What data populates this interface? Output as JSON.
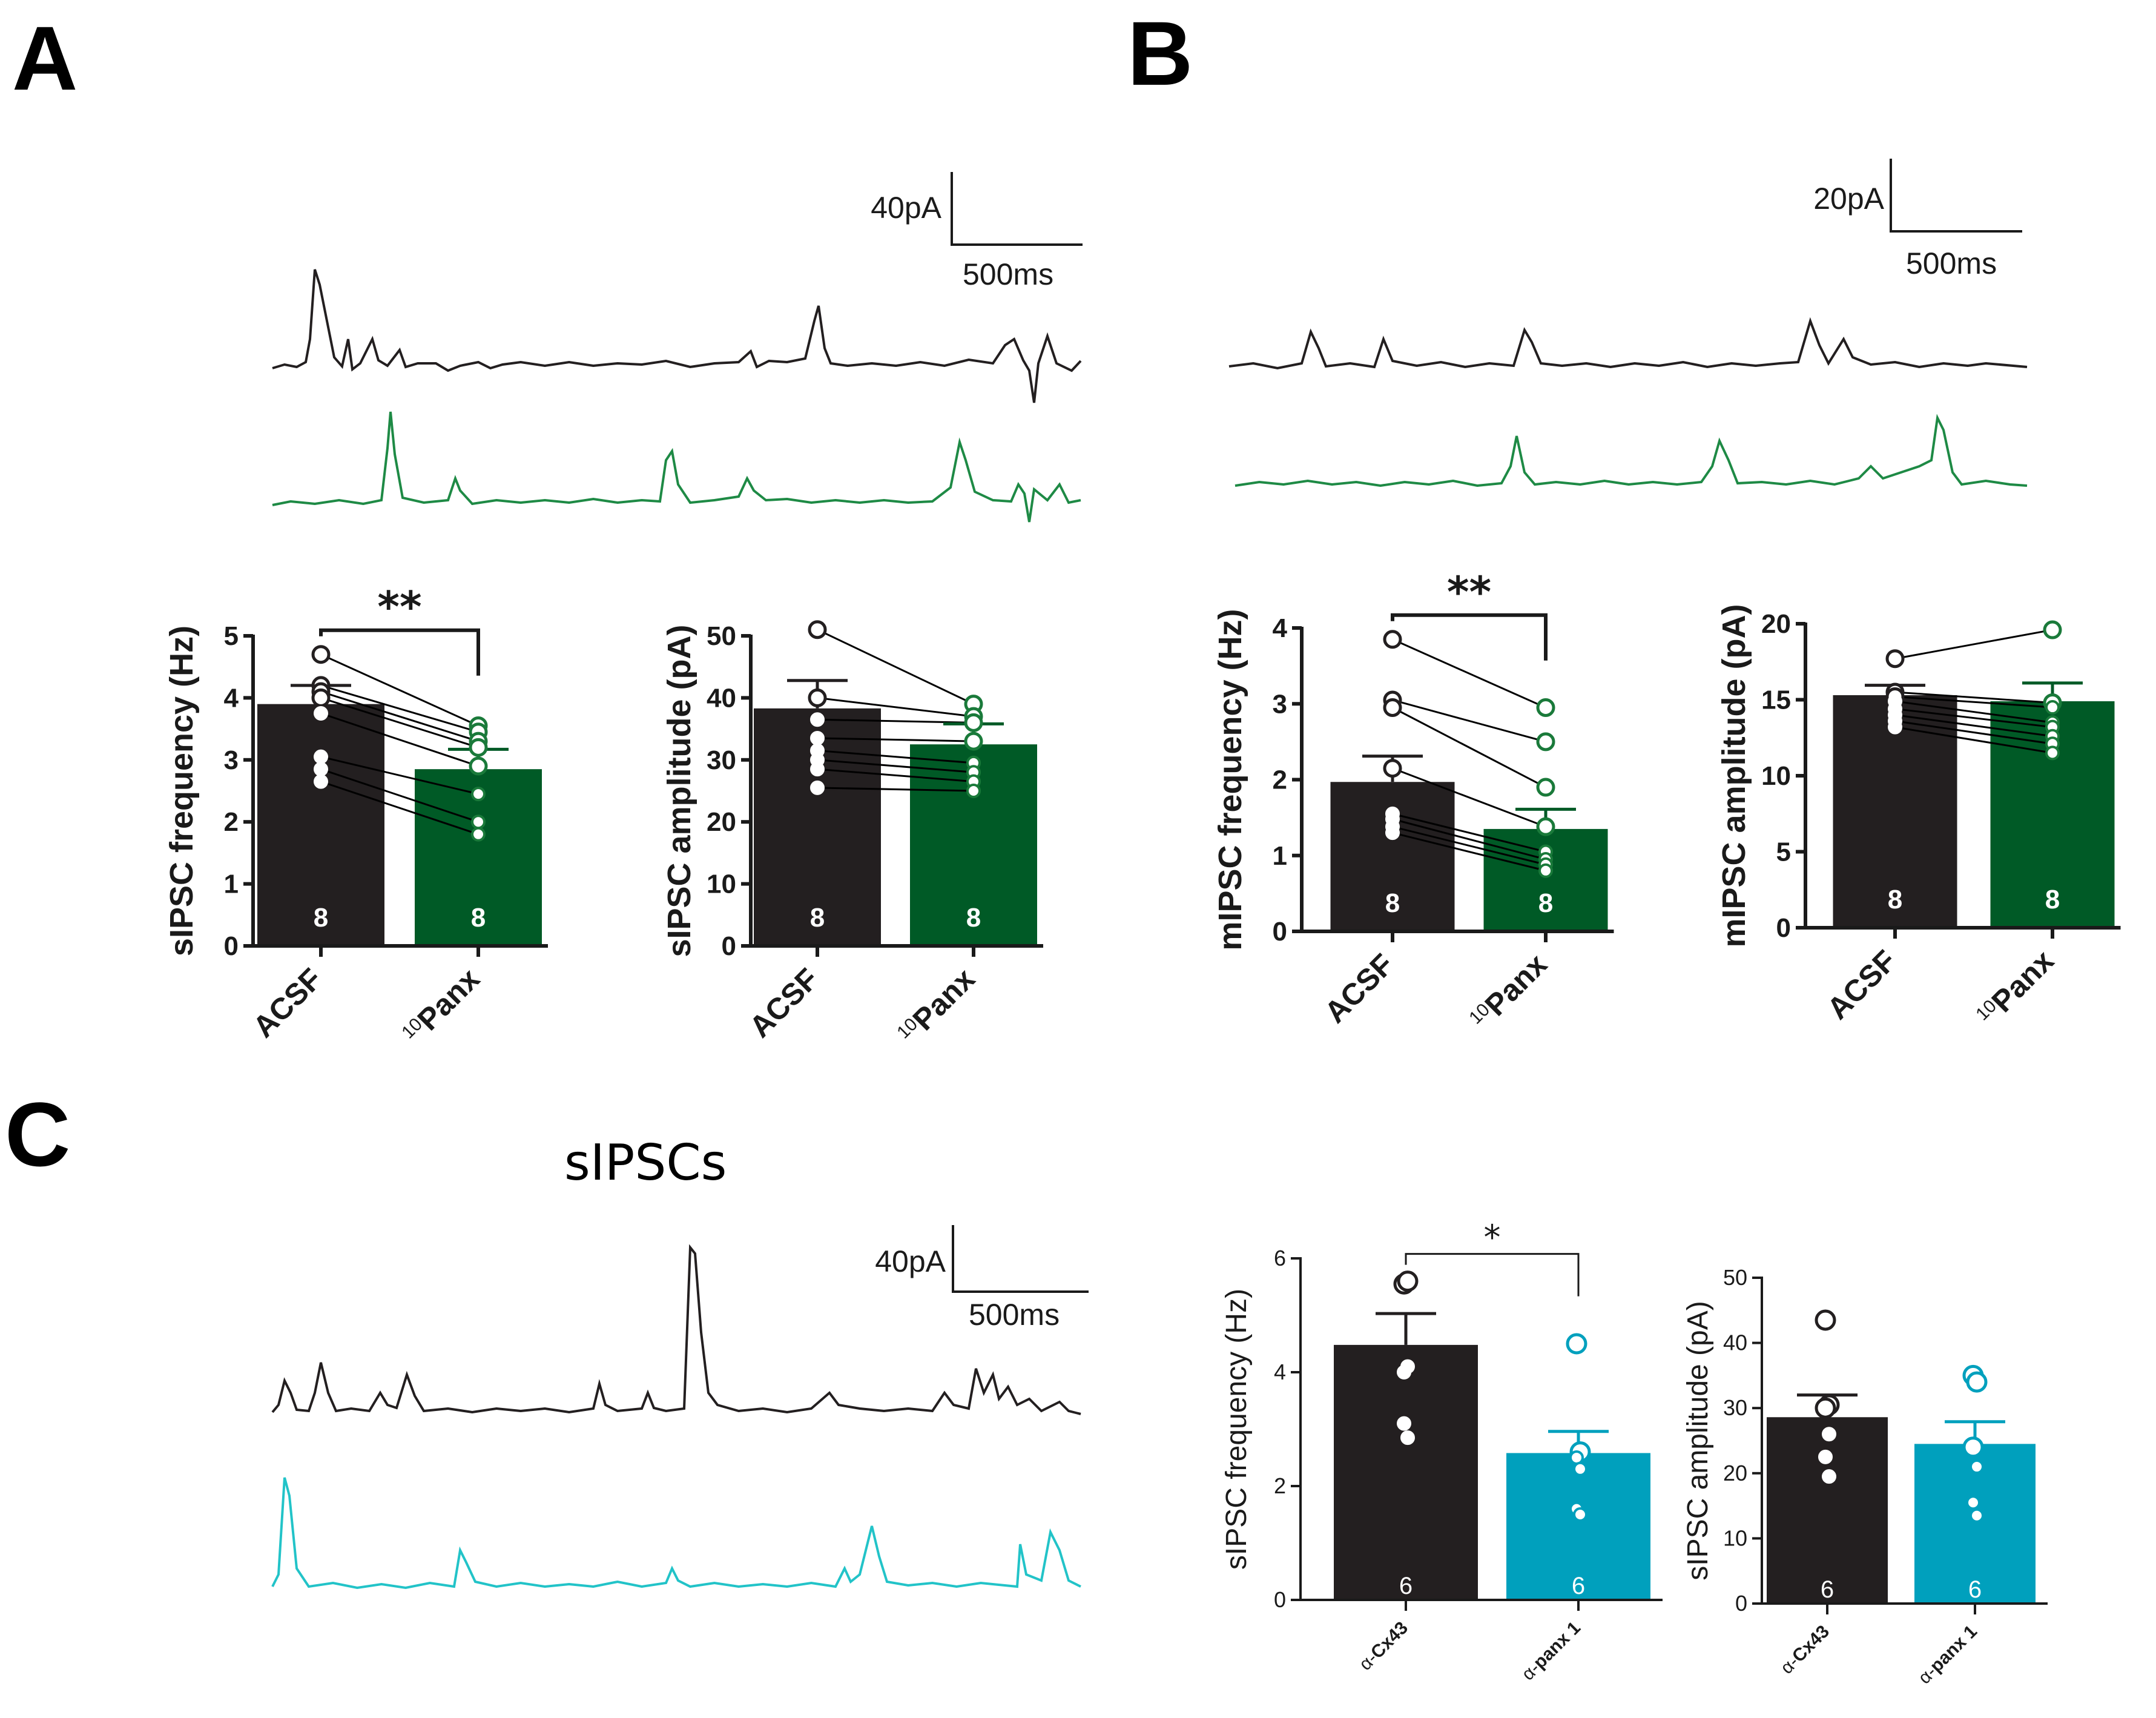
{
  "panel_letters": {
    "a": "A",
    "b": "B",
    "c": "C"
  },
  "panel_c_title": "sIPSCs",
  "scale_bars": {
    "a": {
      "current": "40pA",
      "time": "500ms"
    },
    "b": {
      "current": "20pA",
      "time": "500ms"
    },
    "c": {
      "current": "40pA",
      "time": "500ms"
    }
  },
  "colors": {
    "acsf": "#231f20",
    "panx": "#005a26",
    "panx_points": "#1a7a3a",
    "panx1": "#00a0bd",
    "panx1_trace": "#22c3c8",
    "trace_green": "#1e8a45",
    "axis": "#1a1a1a"
  },
  "chart_data": [
    {
      "id": "A1",
      "type": "bar",
      "ylabel": "sIPSC frequency (Hz)",
      "ylim": [
        0,
        5
      ],
      "yticks": [
        0,
        1,
        2,
        3,
        4,
        5
      ],
      "categories": [
        {
          "sup": "",
          "text": "ACSF"
        },
        {
          "sup": "10",
          "text": "Panx"
        }
      ],
      "values": [
        3.9,
        2.85
      ],
      "sem": [
        0.3,
        0.32
      ],
      "n": [
        "8",
        "8"
      ],
      "paired": [
        [
          4.7,
          3.55
        ],
        [
          4.2,
          3.45
        ],
        [
          4.1,
          3.3
        ],
        [
          4.0,
          3.2
        ],
        [
          3.75,
          2.9
        ],
        [
          3.05,
          2.45
        ],
        [
          2.85,
          2.0
        ],
        [
          2.65,
          1.8
        ]
      ],
      "significance": "**"
    },
    {
      "id": "A2",
      "type": "bar",
      "ylabel": "sIPSC amplitude (pA)",
      "ylim": [
        0,
        50
      ],
      "yticks": [
        0,
        10,
        20,
        30,
        40,
        50
      ],
      "categories": [
        {
          "sup": "",
          "text": "ACSF"
        },
        {
          "sup": "10",
          "text": "Panx"
        }
      ],
      "values": [
        38.3,
        32.5
      ],
      "sem": [
        4.5,
        3.3
      ],
      "n": [
        "8",
        "8"
      ],
      "paired": [
        [
          51,
          39
        ],
        [
          40,
          37
        ],
        [
          36.5,
          36
        ],
        [
          33.5,
          33
        ],
        [
          31.5,
          29.5
        ],
        [
          30,
          28
        ],
        [
          28.5,
          26.5
        ],
        [
          25.5,
          25
        ]
      ],
      "significance": ""
    },
    {
      "id": "B1",
      "type": "bar",
      "ylabel": "mIPSC frequency (Hz)",
      "ylim": [
        0,
        4
      ],
      "yticks": [
        0,
        1,
        2,
        3,
        4
      ],
      "categories": [
        {
          "sup": "",
          "text": "ACSF"
        },
        {
          "sup": "10",
          "text": "Panx"
        }
      ],
      "values": [
        1.97,
        1.35
      ],
      "sem": [
        0.34,
        0.26
      ],
      "n": [
        "8",
        "8"
      ],
      "paired": [
        [
          3.85,
          2.95
        ],
        [
          3.05,
          2.5
        ],
        [
          2.95,
          1.9
        ],
        [
          2.15,
          1.38
        ],
        [
          1.55,
          1.05
        ],
        [
          1.48,
          0.95
        ],
        [
          1.38,
          0.88
        ],
        [
          1.3,
          0.8
        ]
      ],
      "significance": "**"
    },
    {
      "id": "B2",
      "type": "bar",
      "ylabel": "mIPSC amplitude (pA)",
      "ylim": [
        0,
        20
      ],
      "yticks": [
        0,
        5,
        10,
        15,
        20
      ],
      "categories": [
        {
          "sup": "",
          "text": "ACSF"
        },
        {
          "sup": "10",
          "text": "Panx"
        }
      ],
      "values": [
        15.3,
        14.9
      ],
      "sem": [
        0.65,
        1.2
      ],
      "n": [
        "8",
        "8"
      ],
      "paired": [
        [
          17.7,
          19.6
        ],
        [
          15.5,
          14.8
        ],
        [
          15.2,
          14.5
        ],
        [
          14.9,
          13.5
        ],
        [
          14.4,
          13.2
        ],
        [
          14.0,
          12.6
        ],
        [
          13.6,
          12.1
        ],
        [
          13.2,
          11.5
        ]
      ],
      "significance": ""
    },
    {
      "id": "C1",
      "type": "bar",
      "ylabel": "sIPSC frequency (Hz)",
      "ylim": [
        0,
        6
      ],
      "yticks": [
        0,
        2,
        4,
        6
      ],
      "categories": [
        {
          "sup": "α-",
          "text": "Cx43"
        },
        {
          "sup": "α-",
          "text": "panx 1"
        }
      ],
      "values": [
        4.48,
        2.58
      ],
      "sem": [
        0.55,
        0.38
      ],
      "n": [
        "6",
        "6"
      ],
      "points": [
        [
          5.55,
          5.6,
          4.0,
          4.1,
          3.1,
          2.85
        ],
        [
          4.5,
          2.6,
          2.5,
          2.3,
          1.6,
          1.5
        ]
      ],
      "significance": "*"
    },
    {
      "id": "C2",
      "type": "bar",
      "ylabel": "sIPSC amplitude (pA)",
      "ylim": [
        0,
        50
      ],
      "yticks": [
        0,
        10,
        20,
        30,
        40,
        50
      ],
      "categories": [
        {
          "sup": "α-",
          "text": "Cx43"
        },
        {
          "sup": "α-",
          "text": "panx 1"
        }
      ],
      "values": [
        28.6,
        24.5
      ],
      "sem": [
        3.4,
        3.4
      ],
      "n": [
        "6",
        "6"
      ],
      "points": [
        [
          43.5,
          30.5,
          30,
          26,
          22.5,
          19.5
        ],
        [
          35,
          34,
          24,
          21,
          15.5,
          13.5
        ]
      ],
      "significance": ""
    }
  ]
}
